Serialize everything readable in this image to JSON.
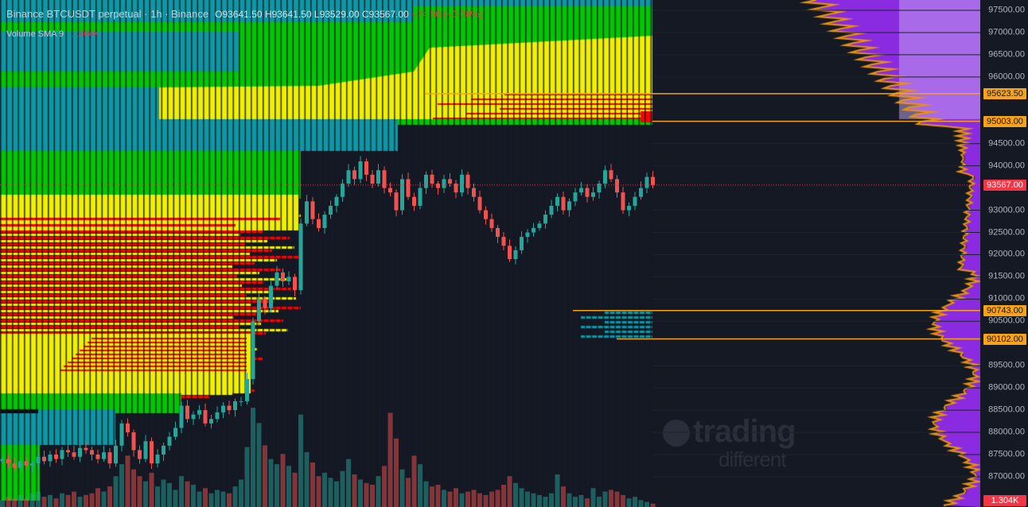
{
  "header": {
    "symbol_title": "Binance BTCUSDT perpetual · 1h · Binance",
    "ohlc": {
      "open": "O93641.50",
      "high": "H93641.50",
      "low": "L93529.00",
      "close": "C93567.00",
      "change": "−74.50 (−0.08%)"
    },
    "volume_label": "Volume SMA 9",
    "volume_value": "1.304K"
  },
  "colors": {
    "background": "#151924",
    "up": "#26a69a",
    "down": "#ef5350",
    "level_line": "#f7a21b",
    "last_price": "#f23645",
    "heat_green": "#00c800",
    "heat_yellow": "#f0f000",
    "heat_red": "#ff0000",
    "heat_teal": "#0e97a5",
    "profile_purple": "#8a2be2"
  },
  "price_axis": {
    "ticks": [
      "97500.00",
      "97000.00",
      "96500.00",
      "96000.00",
      "94500.00",
      "94000.00",
      "93000.00",
      "92500.00",
      "92000.00",
      "91500.00",
      "91000.00",
      "90500.00",
      "89500.00",
      "89000.00",
      "88500.00",
      "88000.00",
      "87500.00",
      "87000.00"
    ],
    "tick_values": [
      97500,
      97000,
      96500,
      96000,
      94500,
      94000,
      93000,
      92500,
      92000,
      91500,
      91000,
      90500,
      89500,
      89000,
      88500,
      88000,
      87500,
      87000
    ],
    "levels": [
      {
        "label": "95623.50",
        "value": 95623.5
      },
      {
        "label": "95003.00",
        "value": 95003
      },
      {
        "label": "90743.00",
        "value": 90743
      },
      {
        "label": "90102.00",
        "value": 90102
      }
    ],
    "last_price": {
      "label": "93567.00",
      "value": 93567
    },
    "volume_tag": "1.304K"
  },
  "watermark": {
    "line1": "trading",
    "line2": "different"
  },
  "candles": {
    "first_open": 87350,
    "closes": [
      87400,
      87300,
      87200,
      87350,
      87250,
      87300,
      87450,
      87350,
      87500,
      87400,
      87600,
      87550,
      87450,
      87650,
      87600,
      87500,
      87400,
      87550,
      87300,
      87700,
      88200,
      88000,
      87600,
      87400,
      87800,
      87300,
      87500,
      87700,
      87900,
      88100,
      88600,
      88300,
      88400,
      88500,
      88200,
      88300,
      88450,
      88600,
      88500,
      88700,
      88700,
      89200,
      90500,
      91000,
      90800,
      91300,
      91600,
      91400,
      91500,
      91200,
      92700,
      93200,
      92800,
      92600,
      92900,
      93100,
      93300,
      93600,
      93900,
      93700,
      94100,
      93800,
      93600,
      93900,
      93500,
      93400,
      93000,
      93700,
      93300,
      93100,
      93500,
      93800,
      93600,
      93500,
      93700,
      93600,
      93400,
      93800,
      93500,
      93300,
      93000,
      92800,
      92600,
      92400,
      92200,
      91900,
      92100,
      92400,
      92500,
      92600,
      92700,
      92900,
      93100,
      93300,
      93000,
      93200,
      93400,
      93500,
      93300,
      93400,
      93600,
      93900,
      93700,
      93400,
      93000,
      93100,
      93300,
      93500,
      93750,
      93567
    ],
    "volumes": [
      0.4,
      0.6,
      0.5,
      0.7,
      0.5,
      0.8,
      0.9,
      0.6,
      0.7,
      0.5,
      0.8,
      0.7,
      0.9,
      0.6,
      0.7,
      0.8,
      1.1,
      0.9,
      1.2,
      1.8,
      2.5,
      3.0,
      2.2,
      1.8,
      1.5,
      2.0,
      1.2,
      1.6,
      1.4,
      1.0,
      1.8,
      1.5,
      1.3,
      0.9,
      1.1,
      0.8,
      1.0,
      0.9,
      0.8,
      1.2,
      1.6,
      3.5,
      5.8,
      4.9,
      3.6,
      2.8,
      2.5,
      3.1,
      2.4,
      2.0,
      5.4,
      3.2,
      2.6,
      1.8,
      2.0,
      1.7,
      1.5,
      2.1,
      2.8,
      1.9,
      1.6,
      1.4,
      1.3,
      1.8,
      2.4,
      5.5,
      4.0,
      2.2,
      1.7,
      3.0,
      2.5,
      1.5,
      1.2,
      1.3,
      1.0,
      0.9,
      1.1,
      0.8,
      0.9,
      1.0,
      0.8,
      0.7,
      0.9,
      1.0,
      1.3,
      1.8,
      1.4,
      1.1,
      0.9,
      0.8,
      0.7,
      0.6,
      0.8,
      1.9,
      1.2,
      0.8,
      0.6,
      0.7,
      0.5,
      1.1,
      0.6,
      0.9,
      1.0,
      0.9,
      0.7,
      0.5,
      0.6,
      0.4,
      0.3,
      0.2
    ]
  }
}
